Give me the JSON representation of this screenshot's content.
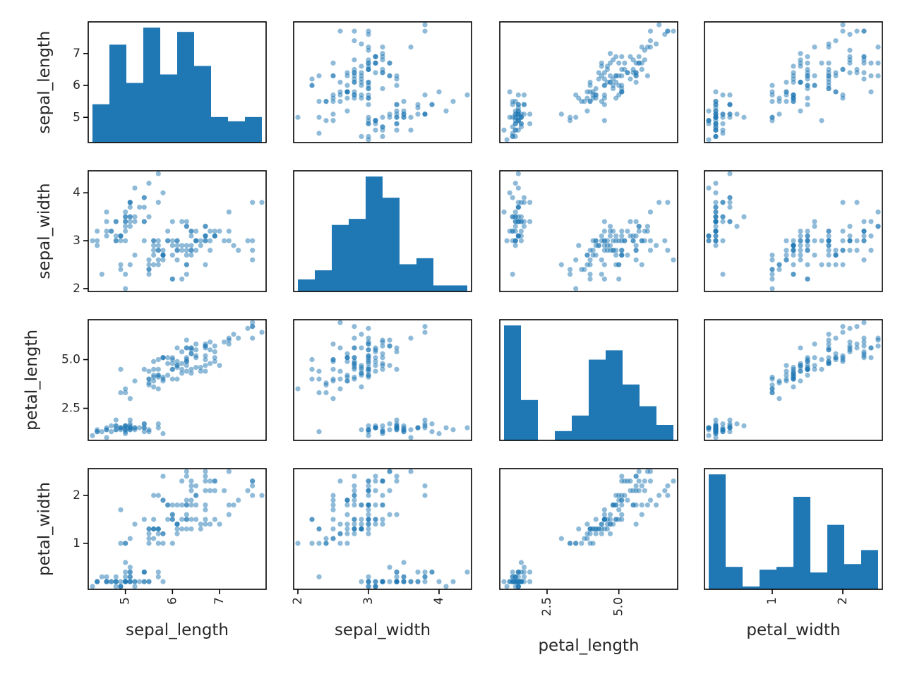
{
  "chart_data": {
    "type": "scatter_matrix",
    "variables": [
      "sepal_length",
      "sepal_width",
      "petal_length",
      "petal_width"
    ],
    "diagonal": "hist",
    "hist_bins": 10,
    "color": "#1f77b4",
    "point_alpha": 0.5,
    "range_padding": 0.05,
    "grid": false,
    "ticks": {
      "sepal_length": {
        "values": [
          5,
          6,
          7
        ],
        "labels": [
          "5",
          "6",
          "7"
        ]
      },
      "sepal_width": {
        "values": [
          2,
          3,
          4
        ],
        "labels": [
          "2",
          "3",
          "4"
        ]
      },
      "petal_length": {
        "values": [
          2.5,
          5.0
        ],
        "labels": [
          "2.5",
          "5.0"
        ]
      },
      "petal_width": {
        "values": [
          1,
          2
        ],
        "labels": [
          "1",
          "2"
        ]
      }
    },
    "rows": [
      [
        5.1,
        3.5,
        1.4,
        0.2
      ],
      [
        4.9,
        3.0,
        1.4,
        0.2
      ],
      [
        4.7,
        3.2,
        1.3,
        0.2
      ],
      [
        4.6,
        3.1,
        1.5,
        0.2
      ],
      [
        5.0,
        3.6,
        1.4,
        0.2
      ],
      [
        5.4,
        3.9,
        1.7,
        0.4
      ],
      [
        4.6,
        3.4,
        1.4,
        0.3
      ],
      [
        5.0,
        3.4,
        1.5,
        0.2
      ],
      [
        4.4,
        2.9,
        1.4,
        0.2
      ],
      [
        4.9,
        3.1,
        1.5,
        0.1
      ],
      [
        5.4,
        3.7,
        1.5,
        0.2
      ],
      [
        4.8,
        3.4,
        1.6,
        0.2
      ],
      [
        4.8,
        3.0,
        1.4,
        0.1
      ],
      [
        4.3,
        3.0,
        1.1,
        0.1
      ],
      [
        5.8,
        4.0,
        1.2,
        0.2
      ],
      [
        5.7,
        4.4,
        1.5,
        0.4
      ],
      [
        5.4,
        3.9,
        1.3,
        0.4
      ],
      [
        5.1,
        3.5,
        1.4,
        0.3
      ],
      [
        5.7,
        3.8,
        1.7,
        0.3
      ],
      [
        5.1,
        3.8,
        1.5,
        0.3
      ],
      [
        5.4,
        3.4,
        1.7,
        0.2
      ],
      [
        5.1,
        3.7,
        1.5,
        0.4
      ],
      [
        4.6,
        3.6,
        1.0,
        0.2
      ],
      [
        5.1,
        3.3,
        1.7,
        0.5
      ],
      [
        4.8,
        3.4,
        1.9,
        0.2
      ],
      [
        5.0,
        3.0,
        1.6,
        0.2
      ],
      [
        5.0,
        3.4,
        1.6,
        0.4
      ],
      [
        5.2,
        3.5,
        1.5,
        0.2
      ],
      [
        5.2,
        3.4,
        1.4,
        0.2
      ],
      [
        4.7,
        3.2,
        1.6,
        0.2
      ],
      [
        4.8,
        3.1,
        1.6,
        0.2
      ],
      [
        5.4,
        3.4,
        1.5,
        0.4
      ],
      [
        5.2,
        4.1,
        1.5,
        0.1
      ],
      [
        5.5,
        4.2,
        1.4,
        0.2
      ],
      [
        4.9,
        3.1,
        1.5,
        0.1
      ],
      [
        5.0,
        3.2,
        1.2,
        0.2
      ],
      [
        5.5,
        3.5,
        1.3,
        0.2
      ],
      [
        4.9,
        3.1,
        1.5,
        0.1
      ],
      [
        4.4,
        3.0,
        1.3,
        0.2
      ],
      [
        5.1,
        3.4,
        1.5,
        0.2
      ],
      [
        5.0,
        3.5,
        1.3,
        0.3
      ],
      [
        4.5,
        2.3,
        1.3,
        0.3
      ],
      [
        4.4,
        3.2,
        1.3,
        0.2
      ],
      [
        5.0,
        3.5,
        1.6,
        0.6
      ],
      [
        5.1,
        3.8,
        1.9,
        0.4
      ],
      [
        4.8,
        3.0,
        1.4,
        0.3
      ],
      [
        5.1,
        3.8,
        1.6,
        0.2
      ],
      [
        4.6,
        3.2,
        1.4,
        0.2
      ],
      [
        5.3,
        3.7,
        1.5,
        0.2
      ],
      [
        5.0,
        3.3,
        1.4,
        0.2
      ],
      [
        7.0,
        3.2,
        4.7,
        1.4
      ],
      [
        6.4,
        3.2,
        4.5,
        1.5
      ],
      [
        6.9,
        3.1,
        4.9,
        1.5
      ],
      [
        5.5,
        2.3,
        4.0,
        1.3
      ],
      [
        6.5,
        2.8,
        4.6,
        1.5
      ],
      [
        5.7,
        2.8,
        4.5,
        1.3
      ],
      [
        6.3,
        3.3,
        4.7,
        1.6
      ],
      [
        4.9,
        2.4,
        3.3,
        1.0
      ],
      [
        6.6,
        2.9,
        4.6,
        1.3
      ],
      [
        5.2,
        2.7,
        3.9,
        1.4
      ],
      [
        5.0,
        2.0,
        3.5,
        1.0
      ],
      [
        5.9,
        3.0,
        4.2,
        1.5
      ],
      [
        6.0,
        2.2,
        4.0,
        1.0
      ],
      [
        6.1,
        2.9,
        4.7,
        1.4
      ],
      [
        5.6,
        2.9,
        3.6,
        1.3
      ],
      [
        6.7,
        3.1,
        4.4,
        1.4
      ],
      [
        5.6,
        3.0,
        4.5,
        1.5
      ],
      [
        5.8,
        2.7,
        4.1,
        1.0
      ],
      [
        6.2,
        2.2,
        4.5,
        1.5
      ],
      [
        5.6,
        2.5,
        3.9,
        1.1
      ],
      [
        5.9,
        3.2,
        4.8,
        1.8
      ],
      [
        6.1,
        2.8,
        4.0,
        1.3
      ],
      [
        6.3,
        2.5,
        4.9,
        1.5
      ],
      [
        6.1,
        2.8,
        4.7,
        1.2
      ],
      [
        6.4,
        2.9,
        4.3,
        1.3
      ],
      [
        6.6,
        3.0,
        4.4,
        1.4
      ],
      [
        6.8,
        2.8,
        4.8,
        1.4
      ],
      [
        6.7,
        3.0,
        5.0,
        1.7
      ],
      [
        6.0,
        2.9,
        4.5,
        1.5
      ],
      [
        5.7,
        2.6,
        3.5,
        1.0
      ],
      [
        5.5,
        2.4,
        3.8,
        1.1
      ],
      [
        5.5,
        2.4,
        3.7,
        1.0
      ],
      [
        5.8,
        2.7,
        3.9,
        1.2
      ],
      [
        6.0,
        2.7,
        5.1,
        1.6
      ],
      [
        5.4,
        3.0,
        4.5,
        1.5
      ],
      [
        6.0,
        3.4,
        4.5,
        1.6
      ],
      [
        6.7,
        3.1,
        4.7,
        1.5
      ],
      [
        6.3,
        2.3,
        4.4,
        1.3
      ],
      [
        5.6,
        3.0,
        4.1,
        1.3
      ],
      [
        5.5,
        2.5,
        4.0,
        1.3
      ],
      [
        5.5,
        2.6,
        4.4,
        1.2
      ],
      [
        6.1,
        3.0,
        4.6,
        1.4
      ],
      [
        5.8,
        2.6,
        4.0,
        1.2
      ],
      [
        5.0,
        2.3,
        3.3,
        1.0
      ],
      [
        5.6,
        2.7,
        4.2,
        1.3
      ],
      [
        5.7,
        3.0,
        4.2,
        1.2
      ],
      [
        5.7,
        2.9,
        4.2,
        1.3
      ],
      [
        6.2,
        2.9,
        4.3,
        1.3
      ],
      [
        5.1,
        2.5,
        3.0,
        1.1
      ],
      [
        5.7,
        2.8,
        4.1,
        1.3
      ],
      [
        6.3,
        3.3,
        6.0,
        2.5
      ],
      [
        5.8,
        2.7,
        5.1,
        1.9
      ],
      [
        7.1,
        3.0,
        5.9,
        2.1
      ],
      [
        6.3,
        2.9,
        5.6,
        1.8
      ],
      [
        6.5,
        3.0,
        5.8,
        2.2
      ],
      [
        7.6,
        3.0,
        6.6,
        2.1
      ],
      [
        4.9,
        2.5,
        4.5,
        1.7
      ],
      [
        7.3,
        2.9,
        6.3,
        1.8
      ],
      [
        6.7,
        2.5,
        5.8,
        1.8
      ],
      [
        7.2,
        3.6,
        6.1,
        2.5
      ],
      [
        6.5,
        3.2,
        5.1,
        2.0
      ],
      [
        6.4,
        2.7,
        5.3,
        1.9
      ],
      [
        6.8,
        3.0,
        5.5,
        2.1
      ],
      [
        5.7,
        2.5,
        5.0,
        2.0
      ],
      [
        5.8,
        2.8,
        5.1,
        2.4
      ],
      [
        6.4,
        3.2,
        5.3,
        2.3
      ],
      [
        6.5,
        3.0,
        5.5,
        1.8
      ],
      [
        7.7,
        3.8,
        6.7,
        2.2
      ],
      [
        7.7,
        2.6,
        6.9,
        2.3
      ],
      [
        6.0,
        2.2,
        5.0,
        1.5
      ],
      [
        6.9,
        3.2,
        5.7,
        2.3
      ],
      [
        5.6,
        2.8,
        4.9,
        2.0
      ],
      [
        7.7,
        2.8,
        6.7,
        2.0
      ],
      [
        6.3,
        2.7,
        4.9,
        1.8
      ],
      [
        6.7,
        3.3,
        5.7,
        2.1
      ],
      [
        7.2,
        3.2,
        6.0,
        1.8
      ],
      [
        6.2,
        2.8,
        4.8,
        1.8
      ],
      [
        6.1,
        3.0,
        4.9,
        1.8
      ],
      [
        6.4,
        2.8,
        5.6,
        2.1
      ],
      [
        7.2,
        3.0,
        5.8,
        1.6
      ],
      [
        7.4,
        2.8,
        6.1,
        1.9
      ],
      [
        7.9,
        3.8,
        6.4,
        2.0
      ],
      [
        6.4,
        2.8,
        5.6,
        2.2
      ],
      [
        6.3,
        2.8,
        5.1,
        1.5
      ],
      [
        6.1,
        2.6,
        5.6,
        1.4
      ],
      [
        7.7,
        3.0,
        6.1,
        2.3
      ],
      [
        6.3,
        3.4,
        5.6,
        2.4
      ],
      [
        6.4,
        3.1,
        5.5,
        1.8
      ],
      [
        6.0,
        3.0,
        4.8,
        1.8
      ],
      [
        6.9,
        3.1,
        5.4,
        2.1
      ],
      [
        6.7,
        3.1,
        5.6,
        2.4
      ],
      [
        6.9,
        3.1,
        5.1,
        2.3
      ],
      [
        5.8,
        2.7,
        5.1,
        1.9
      ],
      [
        6.8,
        3.2,
        5.9,
        2.3
      ],
      [
        6.7,
        3.3,
        5.7,
        2.5
      ],
      [
        6.7,
        3.0,
        5.2,
        2.3
      ],
      [
        6.3,
        2.5,
        5.0,
        1.9
      ],
      [
        6.5,
        3.0,
        5.2,
        2.0
      ],
      [
        6.2,
        3.4,
        5.4,
        2.3
      ],
      [
        5.9,
        3.0,
        5.1,
        1.8
      ]
    ]
  }
}
